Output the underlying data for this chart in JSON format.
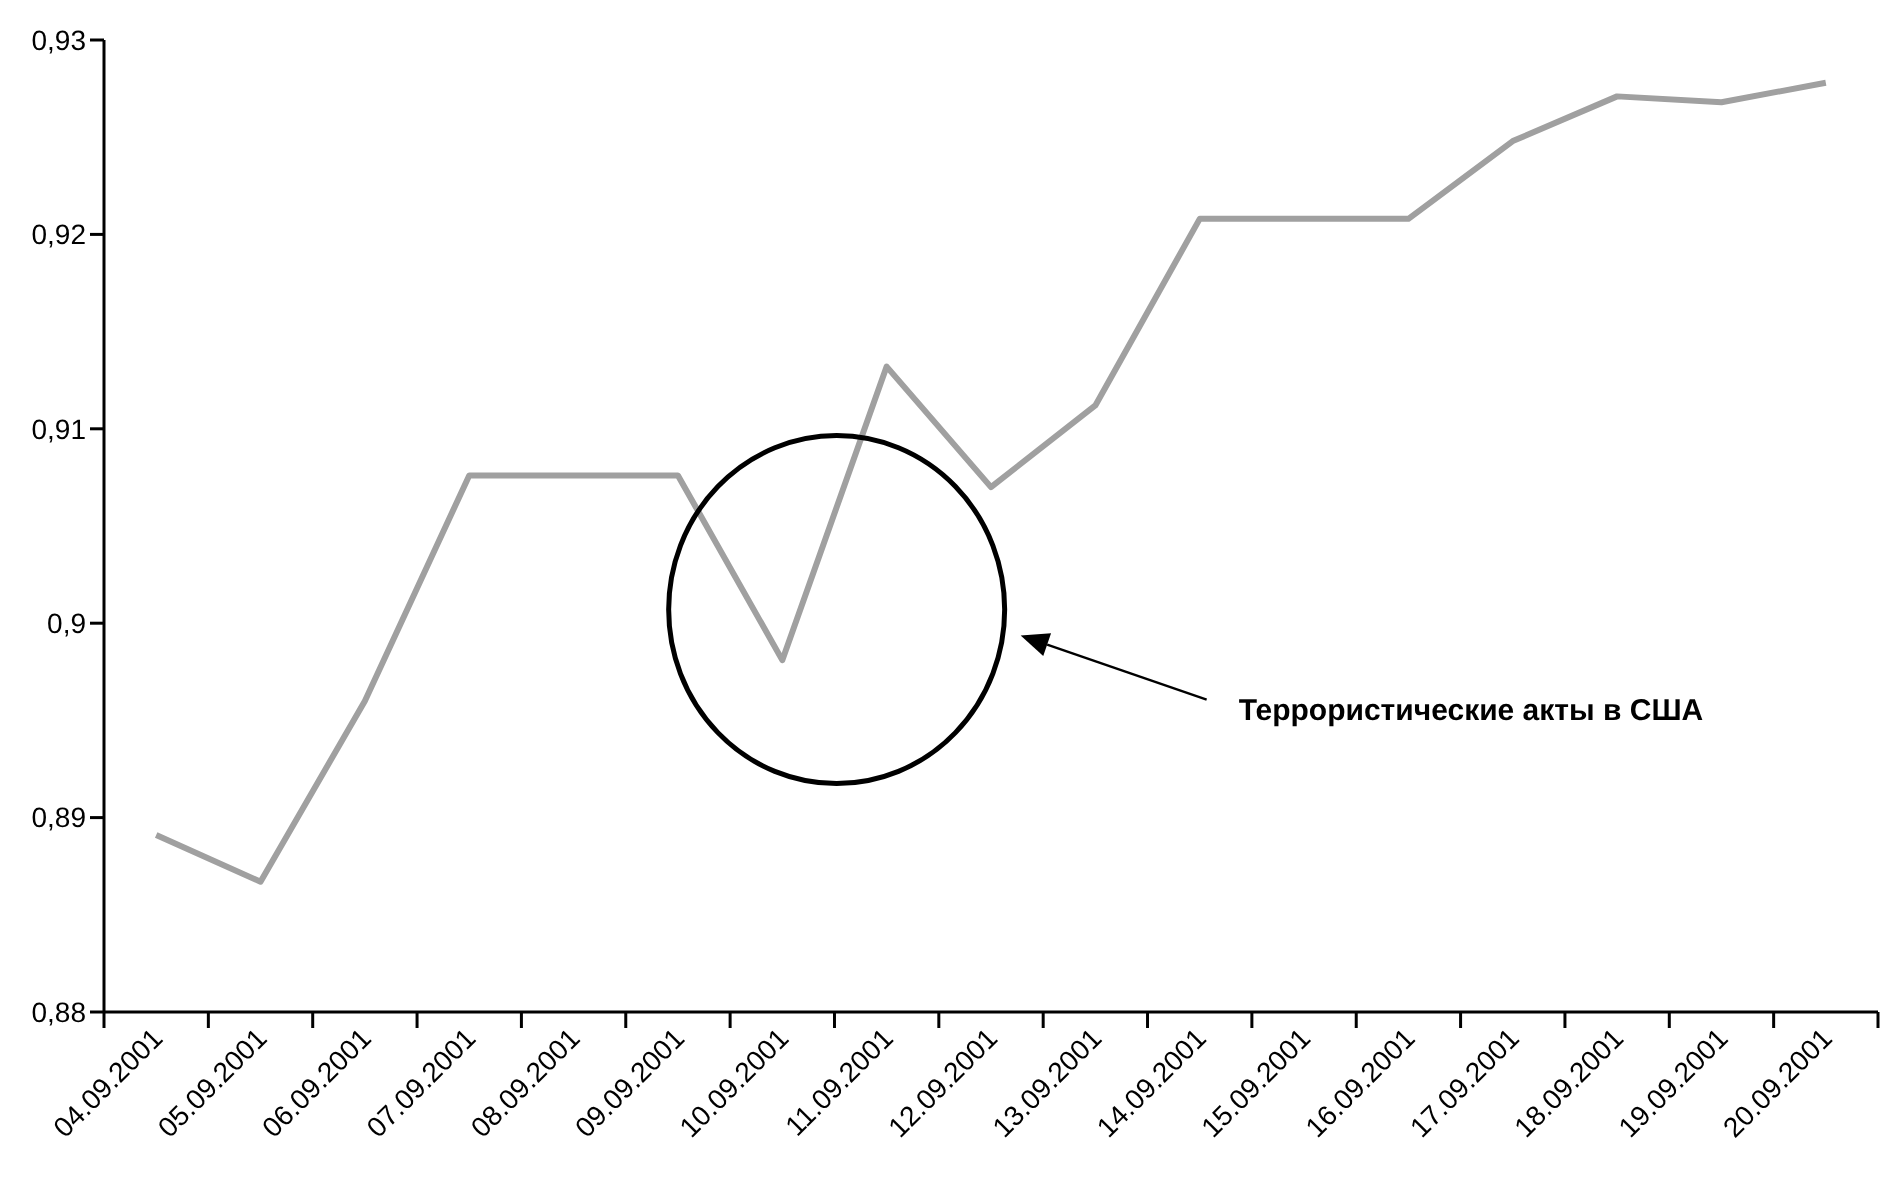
{
  "chart_data": {
    "type": "line",
    "categories": [
      "04.09.2001",
      "05.09.2001",
      "06.09.2001",
      "07.09.2001",
      "08.09.2001",
      "09.09.2001",
      "10.09.2001",
      "11.09.2001",
      "12.09.2001",
      "13.09.2001",
      "14.09.2001",
      "15.09.2001",
      "16.09.2001",
      "17.09.2001",
      "18.09.2001",
      "19.09.2001",
      "20.09.2001"
    ],
    "series": [
      {
        "color": "#a0a0a0",
        "values": [
          0.8891,
          0.8867,
          0.896,
          0.9076,
          0.9076,
          0.9076,
          0.8981,
          0.9132,
          0.907,
          0.9112,
          0.9208,
          0.9208,
          0.9208,
          0.9248,
          0.9271,
          0.9268,
          0.9278
        ]
      }
    ],
    "ylim": [
      0.88,
      0.93
    ],
    "yticks": [
      {
        "value": 0.88,
        "label": "0,88"
      },
      {
        "value": 0.89,
        "label": "0,89"
      },
      {
        "value": 0.9,
        "label": "0,9"
      },
      {
        "value": 0.91,
        "label": "0,91"
      },
      {
        "value": 0.92,
        "label": "0,92"
      },
      {
        "value": 0.93,
        "label": "0,93"
      }
    ],
    "grid": false,
    "marker": "none",
    "line_style": "solid",
    "annotations": [
      "Террористические акты в США"
    ]
  }
}
